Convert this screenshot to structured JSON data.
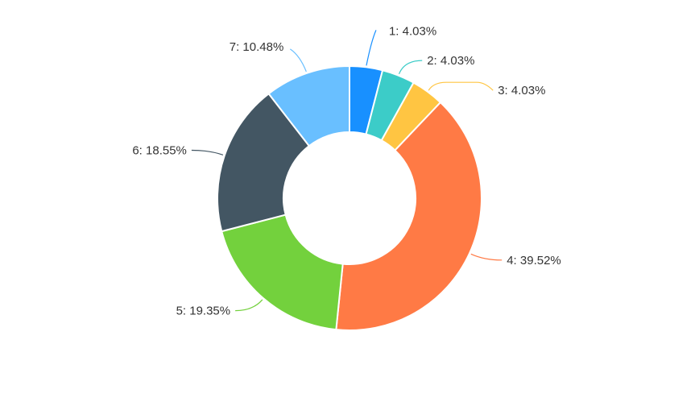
{
  "chart_data": {
    "type": "pie",
    "variant": "donut",
    "title": "",
    "legend": "none",
    "slices": [
      {
        "category": "1",
        "value": 4.03,
        "label": "1: 4.03%",
        "color": "#1890ff"
      },
      {
        "category": "2",
        "value": 4.03,
        "label": "2: 4.03%",
        "color": "#3cccc8"
      },
      {
        "category": "3",
        "value": 4.03,
        "label": "3: 4.03%",
        "color": "#ffc542"
      },
      {
        "category": "4",
        "value": 39.52,
        "label": "4: 39.52%",
        "color": "#ff7a45"
      },
      {
        "category": "5",
        "value": 19.35,
        "label": "5: 19.35%",
        "color": "#73d13d"
      },
      {
        "category": "6",
        "value": 18.55,
        "label": "6: 18.55%",
        "color": "#435663"
      },
      {
        "category": "7",
        "value": 10.48,
        "label": "7: 10.48%",
        "color": "#69bfff"
      }
    ]
  }
}
